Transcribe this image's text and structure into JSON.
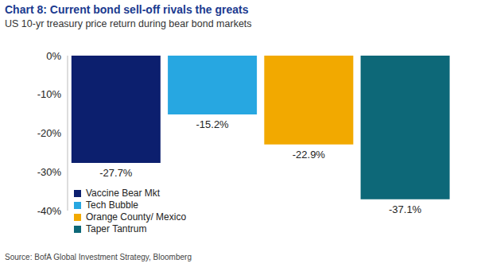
{
  "chart_data": {
    "type": "bar",
    "title": "Chart 8: Current bond sell-off rivals the greats",
    "subtitle": "US 10-yr treasury price return during bear bond markets",
    "source": "Source: BofA Global Investment Strategy, Bloomberg",
    "categories": [
      "Vaccine Bear Mkt",
      "Tech Bubble",
      "Orange County/ Mexico",
      "Taper Tantrum"
    ],
    "values": [
      -27.7,
      -15.2,
      -22.9,
      -37.1
    ],
    "value_labels": [
      "-27.7%",
      "-15.2%",
      "-22.9%",
      "-37.1%"
    ],
    "colors": [
      "#0c1f6e",
      "#27a7e1",
      "#f2a900",
      "#0d6878"
    ],
    "ylim": [
      -40,
      0
    ],
    "yticks": [
      {
        "value": 0,
        "label": "0%"
      },
      {
        "value": -10,
        "label": "-10%"
      },
      {
        "value": -20,
        "label": "-20%"
      },
      {
        "value": -30,
        "label": "-30%"
      },
      {
        "value": -40,
        "label": "-40%"
      }
    ],
    "data_labels": true,
    "legend": "lower left",
    "tick_labels": "y",
    "grid": false
  }
}
